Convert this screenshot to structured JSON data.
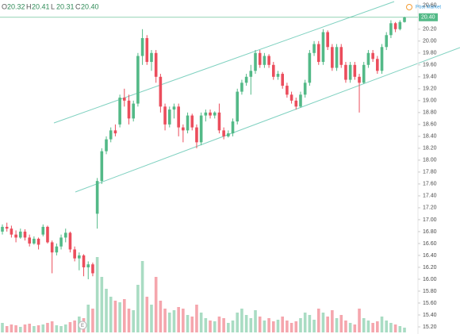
{
  "header": {
    "items": [
      {
        "key": "O",
        "value": "20.32"
      },
      {
        "key": "H",
        "value": "20.41"
      },
      {
        "key": "L",
        "value": "20.31"
      },
      {
        "key": "C",
        "value": "20.40"
      }
    ],
    "post_market": "Post Market",
    "price_tag": "20.40",
    "earnings_marker": "E"
  },
  "chart_data": {
    "type": "candlestick",
    "ylim": [
      15.08,
      20.69
    ],
    "yticks": [
      {
        "value": 15.2,
        "label": "15.20"
      },
      {
        "value": 15.4,
        "label": "15.40"
      },
      {
        "value": 15.6,
        "label": "15.60"
      },
      {
        "value": 15.8,
        "label": "15.80"
      },
      {
        "value": 16.0,
        "label": "16.00"
      },
      {
        "value": 16.2,
        "label": "16.20"
      },
      {
        "value": 16.4,
        "label": "16.40"
      },
      {
        "value": 16.6,
        "label": "16.60"
      },
      {
        "value": 16.8,
        "label": "16.80"
      },
      {
        "value": 17.0,
        "label": "17.00"
      },
      {
        "value": 17.2,
        "label": "17.20"
      },
      {
        "value": 17.4,
        "label": "17.40"
      },
      {
        "value": 17.6,
        "label": "17.60"
      },
      {
        "value": 17.8,
        "label": "17.80"
      },
      {
        "value": 18.0,
        "label": "18.00"
      },
      {
        "value": 18.2,
        "label": "18.20"
      },
      {
        "value": 18.4,
        "label": "18.40"
      },
      {
        "value": 18.6,
        "label": "18.60"
      },
      {
        "value": 18.8,
        "label": "18.80"
      },
      {
        "value": 19.0,
        "label": "19.00"
      },
      {
        "value": 19.2,
        "label": "19.20"
      },
      {
        "value": 19.4,
        "label": "19.40"
      },
      {
        "value": 19.6,
        "label": "19.60"
      },
      {
        "value": 19.8,
        "label": "19.80"
      },
      {
        "value": 20.0,
        "label": "20.00"
      },
      {
        "value": 20.2,
        "label": "20.20"
      },
      {
        "value": 20.6,
        "label": "20.60"
      }
    ],
    "up_color": "#53b987",
    "down_color": "#eb4d5c",
    "open": [
      16.8,
      16.88,
      16.85,
      16.75,
      16.7,
      16.8,
      16.7,
      16.6,
      16.68,
      16.75,
      16.88,
      16.62,
      16.45,
      16.55,
      16.7,
      16.78,
      16.5,
      16.35,
      16.4,
      16.2,
      16.25,
      17.1,
      17.65,
      18.15,
      18.35,
      18.5,
      18.6,
      19.05,
      19.0,
      18.7,
      18.95,
      19.75,
      20.05,
      19.65,
      19.8,
      19.4,
      18.9,
      18.6,
      18.85,
      18.9,
      18.55,
      18.5,
      18.75,
      18.55,
      18.3,
      18.75,
      18.8,
      18.75,
      18.8,
      18.5,
      18.4,
      18.45,
      18.65,
      19.15,
      19.3,
      19.4,
      19.5,
      19.8,
      19.6,
      19.75,
      19.6,
      19.4,
      19.45,
      19.25,
      19.1,
      19.0,
      18.9,
      19.1,
      19.3,
      19.8,
      19.95,
      19.65,
      20.15,
      19.9,
      19.55,
      19.9,
      19.6,
      19.35,
      19.6,
      19.4,
      19.3,
      19.6,
      19.8,
      19.7,
      19.5,
      19.9,
      20.1,
      20.3,
      20.2,
      20.32
    ],
    "high": [
      16.92,
      16.95,
      16.9,
      16.82,
      16.85,
      16.84,
      16.75,
      16.72,
      16.7,
      16.92,
      16.9,
      16.65,
      16.6,
      16.75,
      16.85,
      16.8,
      16.55,
      16.45,
      16.42,
      16.3,
      16.28,
      17.7,
      18.2,
      18.4,
      18.55,
      18.6,
      19.1,
      19.2,
      19.1,
      19.0,
      19.8,
      20.2,
      20.1,
      19.85,
      19.85,
      19.45,
      18.95,
      18.9,
      18.95,
      18.95,
      18.6,
      18.8,
      18.78,
      18.6,
      18.8,
      18.85,
      18.85,
      18.82,
      18.95,
      18.55,
      18.5,
      18.7,
      19.2,
      19.35,
      19.45,
      19.6,
      19.85,
      19.85,
      19.8,
      19.78,
      19.65,
      19.5,
      19.48,
      19.3,
      19.15,
      19.05,
      19.15,
      19.35,
      19.85,
      20.0,
      20.0,
      20.2,
      20.18,
      19.95,
      19.95,
      19.95,
      19.65,
      19.65,
      19.65,
      19.45,
      19.65,
      19.85,
      19.85,
      19.75,
      19.95,
      20.15,
      20.35,
      20.32,
      20.35,
      20.41
    ],
    "low": [
      16.75,
      16.8,
      16.7,
      16.62,
      16.68,
      16.65,
      16.55,
      16.58,
      16.5,
      16.72,
      16.6,
      16.1,
      16.4,
      16.5,
      16.62,
      16.45,
      16.3,
      16.15,
      16.05,
      16.0,
      16.05,
      16.85,
      17.6,
      18.1,
      18.3,
      18.4,
      18.55,
      18.9,
      18.6,
      18.65,
      18.9,
      19.6,
      19.6,
      19.5,
      19.3,
      18.8,
      18.5,
      18.55,
      18.7,
      18.4,
      18.3,
      18.45,
      18.5,
      18.2,
      18.25,
      18.65,
      18.7,
      18.7,
      18.45,
      18.35,
      18.38,
      18.4,
      18.6,
      19.1,
      19.25,
      19.1,
      19.45,
      19.55,
      19.55,
      19.55,
      19.35,
      19.35,
      19.2,
      19.05,
      18.95,
      18.85,
      18.88,
      19.05,
      19.25,
      19.75,
      19.6,
      19.6,
      19.85,
      19.5,
      19.5,
      19.55,
      19.3,
      19.3,
      19.35,
      18.8,
      19.28,
      19.55,
      19.65,
      19.45,
      19.45,
      19.85,
      20.05,
      20.15,
      20.18,
      20.31
    ],
    "close": [
      16.88,
      16.85,
      16.75,
      16.7,
      16.8,
      16.7,
      16.6,
      16.68,
      16.58,
      16.88,
      16.62,
      16.45,
      16.55,
      16.7,
      16.78,
      16.5,
      16.35,
      16.4,
      16.2,
      16.25,
      16.1,
      17.65,
      18.15,
      18.35,
      18.5,
      18.45,
      19.05,
      19.0,
      18.7,
      18.95,
      19.75,
      20.05,
      19.65,
      19.8,
      19.4,
      18.9,
      18.6,
      18.85,
      18.9,
      18.55,
      18.5,
      18.75,
      18.55,
      18.3,
      18.75,
      18.8,
      18.75,
      18.8,
      18.5,
      18.4,
      18.45,
      18.65,
      19.15,
      19.3,
      19.4,
      19.5,
      19.8,
      19.6,
      19.75,
      19.6,
      19.4,
      19.45,
      19.25,
      19.1,
      19.0,
      18.9,
      19.1,
      19.3,
      19.8,
      19.95,
      19.65,
      20.15,
      19.9,
      19.55,
      19.9,
      19.6,
      19.35,
      19.6,
      19.4,
      19.3,
      19.6,
      19.8,
      19.7,
      19.5,
      19.9,
      20.1,
      20.3,
      20.2,
      20.32,
      20.4
    ],
    "volume": [
      12,
      8,
      10,
      9,
      7,
      10,
      11,
      8,
      9,
      10,
      12,
      14,
      9,
      8,
      10,
      13,
      15,
      20,
      18,
      35,
      30,
      95,
      70,
      55,
      45,
      40,
      38,
      42,
      30,
      28,
      60,
      90,
      45,
      35,
      70,
      40,
      30,
      25,
      28,
      32,
      30,
      22,
      20,
      35,
      25,
      18,
      15,
      14,
      20,
      18,
      12,
      15,
      25,
      30,
      22,
      18,
      28,
      20,
      15,
      18,
      14,
      16,
      20,
      15,
      12,
      14,
      18,
      25,
      22,
      16,
      30,
      25,
      20,
      28,
      18,
      22,
      15,
      12,
      10,
      30,
      18,
      15,
      12,
      14,
      20,
      15,
      12,
      10,
      8,
      6
    ],
    "volume_lim": [
      0,
      100
    ]
  }
}
